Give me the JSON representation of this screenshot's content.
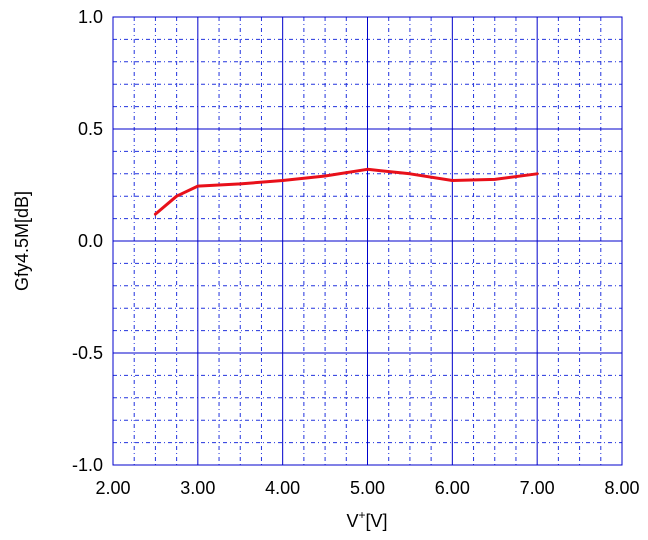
{
  "chart_data": {
    "type": "line",
    "title": "",
    "xlabel_base": "V",
    "xlabel_sup": "+",
    "xlabel_unit": "[V]",
    "ylabel": "Gfy4.5M[dB]",
    "xlim": [
      2.0,
      8.0
    ],
    "ylim": [
      -1.0,
      1.0
    ],
    "x_ticks": [
      "2.00",
      "3.00",
      "4.00",
      "5.00",
      "6.00",
      "7.00",
      "8.00"
    ],
    "y_ticks": [
      "1.0",
      "0.5",
      "0.0",
      "-0.5",
      "-1.0"
    ],
    "grid": true,
    "series": [
      {
        "color": "#e8101a",
        "x": [
          2.5,
          2.75,
          3.0,
          3.5,
          4.0,
          4.5,
          5.0,
          5.5,
          6.0,
          6.5,
          7.0
        ],
        "y": [
          0.12,
          0.2,
          0.245,
          0.255,
          0.27,
          0.29,
          0.32,
          0.3,
          0.27,
          0.275,
          0.3
        ]
      }
    ]
  }
}
